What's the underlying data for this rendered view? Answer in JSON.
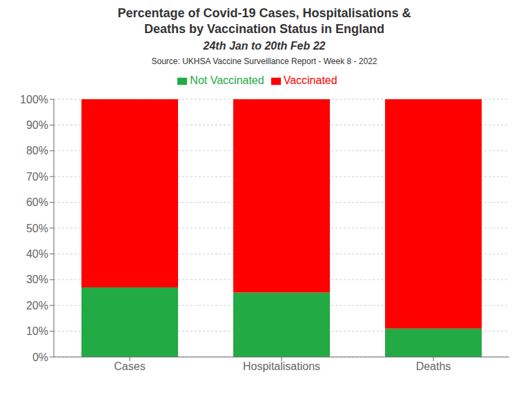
{
  "chart_data": {
    "type": "bar",
    "title": [
      "Percentage of Covid-19 Cases, Hospitalisations &",
      "Deaths by Vaccination Status in England"
    ],
    "subtitle": "24th Jan to 20th Feb 22",
    "annotations": [
      "Source: UKHSA Vaccine Surveillance Report - Week 8 - 2022"
    ],
    "categories": [
      "Cases",
      "Hospitalisations",
      "Deaths"
    ],
    "series": [
      {
        "name": "Not Vaccinated",
        "color": "#22aa44",
        "values": [
          27,
          25,
          11
        ]
      },
      {
        "name": "Vaccinated",
        "color": "#ff0000",
        "values": [
          73,
          75,
          89
        ]
      }
    ],
    "stacked": true,
    "ylim": [
      0,
      100
    ],
    "yticks": [
      {
        "value": 0,
        "label": "0%"
      },
      {
        "value": 10,
        "label": "10%"
      },
      {
        "value": 20,
        "label": "20%"
      },
      {
        "value": 30,
        "label": "30%"
      },
      {
        "value": 40,
        "label": "40%"
      },
      {
        "value": 50,
        "label": "50%"
      },
      {
        "value": 60,
        "label": "60%"
      },
      {
        "value": 70,
        "label": "70%"
      },
      {
        "value": 80,
        "label": "80%"
      },
      {
        "value": 90,
        "label": "90%"
      },
      {
        "value": 100,
        "label": "100%"
      }
    ],
    "grid": true,
    "legend": "top"
  }
}
